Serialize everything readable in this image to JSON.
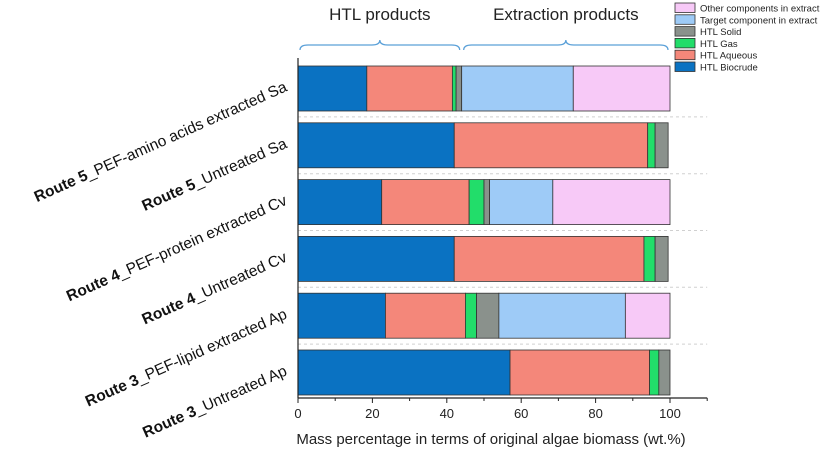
{
  "chart_data": {
    "type": "bar",
    "orientation": "horizontal",
    "stacked": true,
    "xlabel": "Mass percentage in terms of original algae biomass (wt.%)",
    "xlim": [
      0,
      110
    ],
    "xticks": [
      0,
      20,
      40,
      60,
      80,
      100
    ],
    "categories": [
      {
        "route": "Route 5",
        "desc": "_PEF-amino acids extracted Sa"
      },
      {
        "route": "Route 5",
        "desc": "_Untreated Sa"
      },
      {
        "route": "Route 4",
        "desc": "_PEF-protein extracted Cv"
      },
      {
        "route": "Route 4",
        "desc": "_Untreated Cv"
      },
      {
        "route": "Route 3",
        "desc": "_PEF-lipid extracted Ap"
      },
      {
        "route": "Route 3",
        "desc": "_Untreated Ap"
      }
    ],
    "series": [
      {
        "name": "HTL Biocrude",
        "color": "#0a72c2",
        "values": [
          18.5,
          42.0,
          22.5,
          42.0,
          23.5,
          57.0
        ]
      },
      {
        "name": "HTL Aqueous",
        "color": "#f4877a",
        "values": [
          23.0,
          52.0,
          23.5,
          51.0,
          21.5,
          37.5
        ]
      },
      {
        "name": "HTL Gas",
        "color": "#22dd6a",
        "values": [
          1.0,
          2.0,
          4.0,
          3.0,
          3.0,
          2.5
        ]
      },
      {
        "name": "HTL Solid",
        "color": "#8a918c",
        "values": [
          1.5,
          3.5,
          1.5,
          3.5,
          6.0,
          3.0
        ]
      },
      {
        "name": "Target component in extract",
        "color": "#9ecbf7",
        "values": [
          30.0,
          0,
          17.0,
          0,
          34.0,
          0
        ]
      },
      {
        "name": "Other components in extract",
        "color": "#f7c9f7",
        "values": [
          26.0,
          0,
          31.5,
          0,
          12.0,
          0
        ]
      }
    ],
    "legend_order": [
      "Other components in extract",
      "Target component in extract",
      "HTL Solid",
      "HTL Gas",
      "HTL Aqueous",
      "HTL Biocrude"
    ],
    "legend_position": "top-right",
    "annotations": [
      {
        "text": "HTL products",
        "from": 0,
        "to": 44
      },
      {
        "text": "Extraction products",
        "from": 44,
        "to": 100
      }
    ]
  }
}
